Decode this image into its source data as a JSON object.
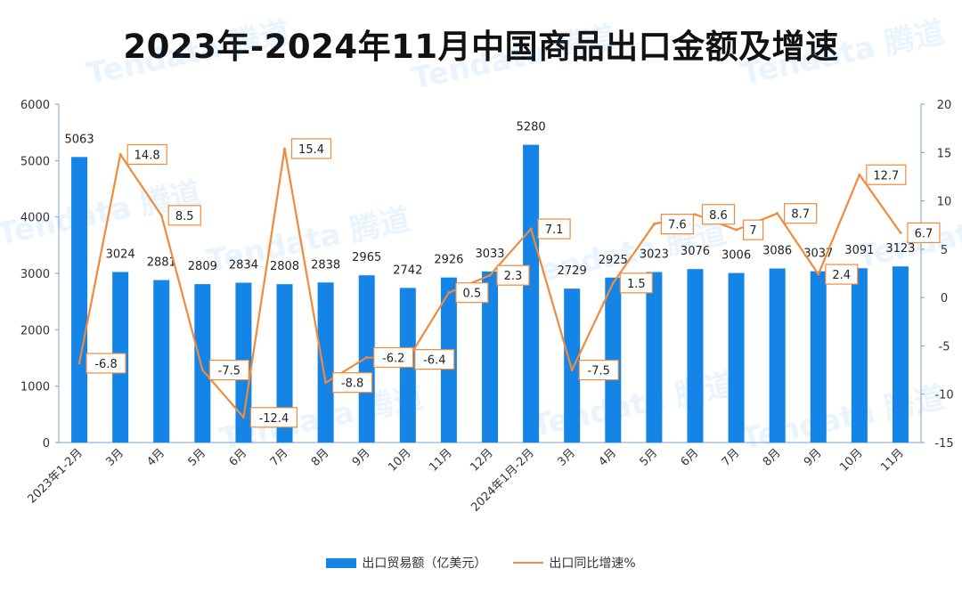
{
  "title": "2023年-2024年11月中国商品出口金额及增速",
  "watermark": "Tendata 腾道",
  "chart_data": {
    "type": "bar+line",
    "categories": [
      "2023年1-2月",
      "3月",
      "4月",
      "5月",
      "6月",
      "7月",
      "8月",
      "9月",
      "10月",
      "11月",
      "12月",
      "2024年1月-2月",
      "3月",
      "4月",
      "5月",
      "6月",
      "7月",
      "8月",
      "9月",
      "10月",
      "11月"
    ],
    "series": [
      {
        "name": "出口贸易额（亿美元）",
        "type": "bar",
        "axis": "left",
        "color": "#1484e6",
        "values": [
          5063,
          3024,
          2881,
          2809,
          2834,
          2808,
          2838,
          2965,
          2742,
          2926,
          3033,
          5280,
          2729,
          2925,
          3023,
          3076,
          3006,
          3086,
          3037,
          3091,
          3123
        ]
      },
      {
        "name": "出口同比增速%",
        "type": "line",
        "axis": "right",
        "color": "#f08a3c",
        "values": [
          -6.8,
          14.8,
          8.5,
          -7.5,
          -12.4,
          15.4,
          -8.8,
          -6.2,
          -6.4,
          0.5,
          2.3,
          7.1,
          -7.5,
          1.5,
          7.6,
          8.6,
          7,
          8.7,
          2.4,
          12.7,
          6.7
        ]
      }
    ],
    "y_left": {
      "min": 0,
      "max": 6000,
      "ticks": [
        0,
        1000,
        2000,
        3000,
        4000,
        5000,
        6000
      ]
    },
    "y_right": {
      "min": -15,
      "max": 20,
      "ticks": [
        -15,
        -10,
        -5,
        0,
        5,
        10,
        15,
        20
      ]
    },
    "legend_position": "bottom"
  }
}
